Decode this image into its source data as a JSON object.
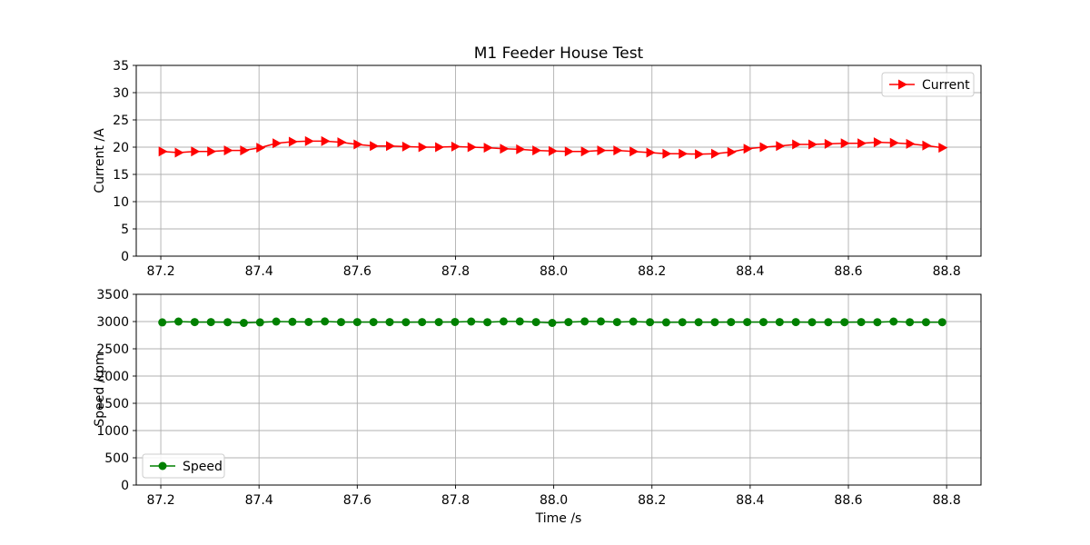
{
  "chart_data": [
    {
      "type": "line",
      "title": "M1 Feeder House Test",
      "xlabel": "",
      "ylabel": "Current /A",
      "xlim": [
        87.15,
        88.87
      ],
      "ylim": [
        0,
        35
      ],
      "xticks": [
        87.2,
        87.4,
        87.6,
        87.8,
        88.0,
        88.2,
        88.4,
        88.6,
        88.8
      ],
      "xtick_labels": [
        "87.2",
        "87.4",
        "87.6",
        "87.8",
        "88.0",
        "88.2",
        "88.4",
        "88.6",
        "88.8"
      ],
      "yticks": [
        0,
        5,
        10,
        15,
        20,
        25,
        30,
        35
      ],
      "ytick_labels": [
        "0",
        "5",
        "10",
        "15",
        "20",
        "25",
        "30",
        "35"
      ],
      "grid": true,
      "legend": "top-right",
      "series": [
        {
          "name": "Current",
          "color": "#ff0000",
          "marker": "triangle-right",
          "x": [
            87.203,
            87.236,
            87.269,
            87.302,
            87.336,
            87.369,
            87.402,
            87.435,
            87.468,
            87.501,
            87.534,
            87.567,
            87.6,
            87.633,
            87.666,
            87.699,
            87.732,
            87.766,
            87.799,
            87.832,
            87.865,
            87.898,
            87.931,
            87.964,
            87.997,
            88.03,
            88.063,
            88.096,
            88.129,
            88.162,
            88.196,
            88.229,
            88.262,
            88.295,
            88.328,
            88.361,
            88.394,
            88.427,
            88.46,
            88.493,
            88.526,
            88.559,
            88.592,
            88.626,
            88.659,
            88.692,
            88.725,
            88.758,
            88.791
          ],
          "values": [
            19.2,
            19.0,
            19.2,
            19.2,
            19.4,
            19.4,
            19.9,
            20.7,
            21.0,
            21.1,
            21.1,
            20.9,
            20.5,
            20.2,
            20.2,
            20.1,
            20.0,
            20.0,
            20.1,
            20.0,
            19.9,
            19.7,
            19.6,
            19.4,
            19.3,
            19.2,
            19.2,
            19.4,
            19.4,
            19.2,
            19.0,
            18.8,
            18.8,
            18.7,
            18.8,
            19.1,
            19.7,
            20.0,
            20.2,
            20.5,
            20.5,
            20.6,
            20.7,
            20.7,
            20.9,
            20.8,
            20.6,
            20.3,
            19.9
          ]
        }
      ]
    },
    {
      "type": "line",
      "title": "",
      "xlabel": "Time /s",
      "ylabel": "Speed /rpm",
      "xlim": [
        87.15,
        88.87
      ],
      "ylim": [
        0,
        3500
      ],
      "xticks": [
        87.2,
        87.4,
        87.6,
        87.8,
        88.0,
        88.2,
        88.4,
        88.6,
        88.8
      ],
      "xtick_labels": [
        "87.2",
        "87.4",
        "87.6",
        "87.8",
        "88.0",
        "88.2",
        "88.4",
        "88.6",
        "88.8"
      ],
      "yticks": [
        0,
        500,
        1000,
        1500,
        2000,
        2500,
        3000,
        3500
      ],
      "ytick_labels": [
        "0",
        "500",
        "1000",
        "1500",
        "2000",
        "2500",
        "3000",
        "3500"
      ],
      "grid": true,
      "legend": "bottom-left",
      "series": [
        {
          "name": "Speed",
          "color": "#008000",
          "marker": "circle",
          "x": [
            87.203,
            87.236,
            87.269,
            87.302,
            87.336,
            87.369,
            87.402,
            87.435,
            87.468,
            87.501,
            87.534,
            87.567,
            87.6,
            87.633,
            87.666,
            87.699,
            87.732,
            87.766,
            87.799,
            87.832,
            87.865,
            87.898,
            87.931,
            87.964,
            87.997,
            88.03,
            88.063,
            88.096,
            88.129,
            88.162,
            88.196,
            88.229,
            88.262,
            88.295,
            88.328,
            88.361,
            88.394,
            88.427,
            88.46,
            88.493,
            88.526,
            88.559,
            88.592,
            88.626,
            88.659,
            88.692,
            88.725,
            88.758,
            88.791
          ],
          "values": [
            2985,
            3000,
            2990,
            2990,
            2988,
            2975,
            2985,
            3000,
            2995,
            2992,
            3002,
            2990,
            2990,
            2990,
            2990,
            2988,
            2990,
            2990,
            2992,
            3000,
            2988,
            3002,
            3002,
            2990,
            2975,
            2990,
            3002,
            3002,
            2990,
            3000,
            2988,
            2985,
            2988,
            2988,
            2988,
            2990,
            2990,
            2990,
            2990,
            2990,
            2988,
            2988,
            2988,
            2990,
            2988,
            3000,
            2988,
            2988,
            2988
          ]
        }
      ]
    }
  ]
}
